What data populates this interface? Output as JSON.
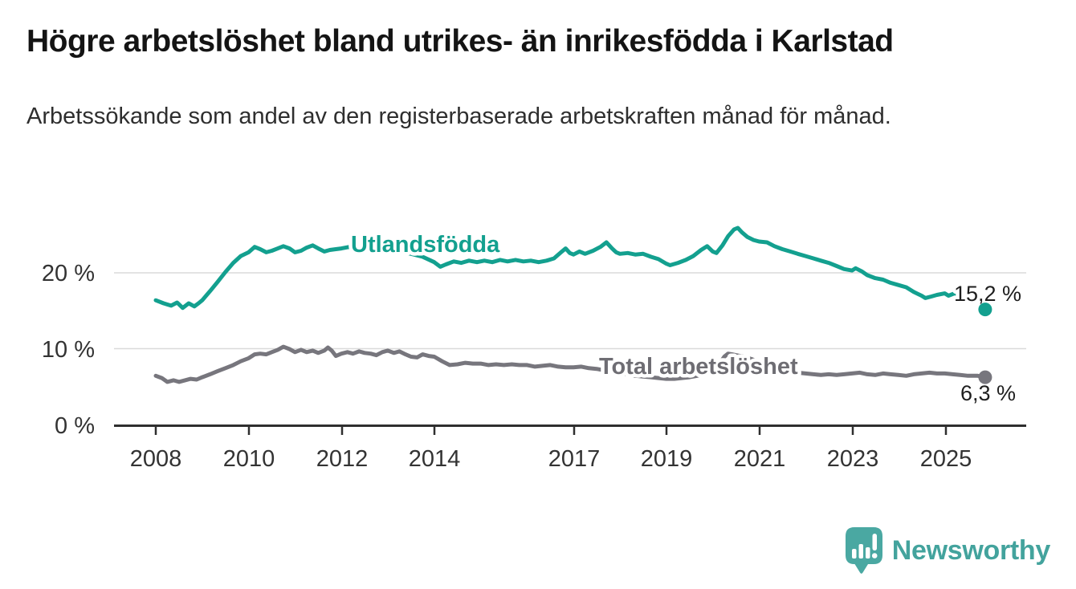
{
  "branding": {
    "name": "Newsworthy",
    "logo_color": "#4aa8a2"
  },
  "chart_data": {
    "type": "line",
    "title": "Högre arbetslöshet bland utrikes- än inrikesfödda i Karlstad",
    "subtitle": "Arbetssökande som andel av den registerbaserade arbetskraften månad för månad.",
    "unit": "%",
    "grid": "horizontal",
    "legend_position": "inline-labels",
    "x_range_years": [
      2008,
      2025.87
    ],
    "ylim": [
      0,
      27
    ],
    "x_axis": {
      "tick_years": [
        2008,
        2010,
        2012,
        2014,
        2017,
        2019,
        2021,
        2023,
        2025
      ],
      "labels": [
        "2008",
        "2010",
        "2012",
        "2014",
        "2017",
        "2019",
        "2021",
        "2023",
        "2025"
      ]
    },
    "y_axis": {
      "ticks": [
        {
          "value": 0,
          "label": "0 %"
        },
        {
          "value": 10,
          "label": "10 %"
        },
        {
          "value": 20,
          "label": "20 %"
        }
      ]
    },
    "series": [
      {
        "id": "utlandsfodda",
        "name": "Utlandsfödda",
        "color": "#13a08f",
        "end_value": 15.2,
        "end_label": "15,2 %",
        "points": [
          [
            2008.0,
            16.4
          ],
          [
            2008.17,
            16.0
          ],
          [
            2008.33,
            15.7
          ],
          [
            2008.46,
            16.1
          ],
          [
            2008.58,
            15.4
          ],
          [
            2008.71,
            16.0
          ],
          [
            2008.83,
            15.6
          ],
          [
            2008.92,
            16.0
          ],
          [
            2009.0,
            16.4
          ],
          [
            2009.17,
            17.6
          ],
          [
            2009.33,
            18.8
          ],
          [
            2009.5,
            20.1
          ],
          [
            2009.67,
            21.3
          ],
          [
            2009.83,
            22.2
          ],
          [
            2010.0,
            22.7
          ],
          [
            2010.13,
            23.4
          ],
          [
            2010.25,
            23.1
          ],
          [
            2010.38,
            22.7
          ],
          [
            2010.5,
            22.9
          ],
          [
            2010.63,
            23.2
          ],
          [
            2010.75,
            23.5
          ],
          [
            2010.88,
            23.2
          ],
          [
            2011.0,
            22.7
          ],
          [
            2011.13,
            22.9
          ],
          [
            2011.25,
            23.3
          ],
          [
            2011.38,
            23.6
          ],
          [
            2011.5,
            23.2
          ],
          [
            2011.63,
            22.8
          ],
          [
            2011.75,
            23.0
          ],
          [
            2011.88,
            23.1
          ],
          [
            2012.0,
            23.2
          ],
          [
            2012.17,
            23.4
          ],
          [
            2012.33,
            23.1
          ],
          [
            2012.5,
            23.3
          ],
          [
            2012.67,
            23.1
          ],
          [
            2012.83,
            23.2
          ],
          [
            2013.0,
            23.1
          ],
          [
            2013.25,
            22.8
          ],
          [
            2013.5,
            22.5
          ],
          [
            2013.75,
            22.1
          ],
          [
            2014.0,
            21.4
          ],
          [
            2014.13,
            20.8
          ],
          [
            2014.25,
            21.1
          ],
          [
            2014.42,
            21.5
          ],
          [
            2014.58,
            21.3
          ],
          [
            2014.75,
            21.6
          ],
          [
            2014.92,
            21.4
          ],
          [
            2015.08,
            21.6
          ],
          [
            2015.25,
            21.4
          ],
          [
            2015.42,
            21.7
          ],
          [
            2015.58,
            21.5
          ],
          [
            2015.75,
            21.7
          ],
          [
            2015.92,
            21.5
          ],
          [
            2016.08,
            21.6
          ],
          [
            2016.25,
            21.4
          ],
          [
            2016.42,
            21.6
          ],
          [
            2016.58,
            21.9
          ],
          [
            2016.75,
            22.8
          ],
          [
            2016.83,
            23.2
          ],
          [
            2016.92,
            22.6
          ],
          [
            2017.0,
            22.4
          ],
          [
            2017.13,
            22.8
          ],
          [
            2017.25,
            22.5
          ],
          [
            2017.42,
            22.9
          ],
          [
            2017.58,
            23.4
          ],
          [
            2017.71,
            24.0
          ],
          [
            2017.83,
            23.2
          ],
          [
            2017.92,
            22.7
          ],
          [
            2018.0,
            22.5
          ],
          [
            2018.17,
            22.6
          ],
          [
            2018.33,
            22.4
          ],
          [
            2018.5,
            22.5
          ],
          [
            2018.67,
            22.1
          ],
          [
            2018.83,
            21.8
          ],
          [
            2019.0,
            21.2
          ],
          [
            2019.08,
            21.0
          ],
          [
            2019.25,
            21.3
          ],
          [
            2019.42,
            21.7
          ],
          [
            2019.58,
            22.2
          ],
          [
            2019.75,
            23.0
          ],
          [
            2019.88,
            23.5
          ],
          [
            2020.0,
            22.8
          ],
          [
            2020.08,
            22.6
          ],
          [
            2020.21,
            23.6
          ],
          [
            2020.33,
            24.8
          ],
          [
            2020.46,
            25.7
          ],
          [
            2020.54,
            25.9
          ],
          [
            2020.63,
            25.3
          ],
          [
            2020.75,
            24.7
          ],
          [
            2020.88,
            24.3
          ],
          [
            2021.0,
            24.1
          ],
          [
            2021.17,
            24.0
          ],
          [
            2021.33,
            23.5
          ],
          [
            2021.5,
            23.1
          ],
          [
            2021.67,
            22.8
          ],
          [
            2021.83,
            22.5
          ],
          [
            2022.0,
            22.2
          ],
          [
            2022.17,
            21.9
          ],
          [
            2022.33,
            21.6
          ],
          [
            2022.5,
            21.3
          ],
          [
            2022.67,
            20.9
          ],
          [
            2022.83,
            20.5
          ],
          [
            2023.0,
            20.3
          ],
          [
            2023.08,
            20.6
          ],
          [
            2023.21,
            20.2
          ],
          [
            2023.33,
            19.7
          ],
          [
            2023.5,
            19.3
          ],
          [
            2023.67,
            19.1
          ],
          [
            2023.83,
            18.7
          ],
          [
            2024.0,
            18.4
          ],
          [
            2024.17,
            18.1
          ],
          [
            2024.33,
            17.5
          ],
          [
            2024.5,
            17.0
          ],
          [
            2024.58,
            16.7
          ],
          [
            2024.71,
            16.9
          ],
          [
            2024.83,
            17.1
          ],
          [
            2025.0,
            17.3
          ],
          [
            2025.08,
            17.0
          ],
          [
            2025.21,
            17.3
          ],
          [
            2025.33,
            17.1
          ],
          [
            2025.46,
            17.2
          ],
          [
            2025.58,
            16.9
          ],
          [
            2025.71,
            16.4
          ],
          [
            2025.87,
            15.2
          ]
        ]
      },
      {
        "id": "total-arbetsloshet",
        "name": "Total arbetslöshet",
        "color": "#77767d",
        "label_color": "#6e6d73",
        "end_value": 6.3,
        "end_label": "6,3 %",
        "points": [
          [
            2008.0,
            6.5
          ],
          [
            2008.13,
            6.2
          ],
          [
            2008.25,
            5.7
          ],
          [
            2008.38,
            5.9
          ],
          [
            2008.5,
            5.7
          ],
          [
            2008.63,
            5.9
          ],
          [
            2008.75,
            6.1
          ],
          [
            2008.88,
            6.0
          ],
          [
            2009.0,
            6.3
          ],
          [
            2009.17,
            6.7
          ],
          [
            2009.33,
            7.1
          ],
          [
            2009.5,
            7.5
          ],
          [
            2009.67,
            7.9
          ],
          [
            2009.83,
            8.4
          ],
          [
            2010.0,
            8.8
          ],
          [
            2010.13,
            9.3
          ],
          [
            2010.25,
            9.4
          ],
          [
            2010.38,
            9.3
          ],
          [
            2010.5,
            9.6
          ],
          [
            2010.63,
            9.9
          ],
          [
            2010.75,
            10.3
          ],
          [
            2010.88,
            10.0
          ],
          [
            2011.0,
            9.6
          ],
          [
            2011.13,
            9.9
          ],
          [
            2011.25,
            9.6
          ],
          [
            2011.38,
            9.8
          ],
          [
            2011.5,
            9.5
          ],
          [
            2011.63,
            9.8
          ],
          [
            2011.71,
            10.2
          ],
          [
            2011.79,
            9.8
          ],
          [
            2011.88,
            9.1
          ],
          [
            2012.0,
            9.4
          ],
          [
            2012.13,
            9.6
          ],
          [
            2012.25,
            9.4
          ],
          [
            2012.38,
            9.7
          ],
          [
            2012.5,
            9.5
          ],
          [
            2012.63,
            9.4
          ],
          [
            2012.75,
            9.2
          ],
          [
            2012.88,
            9.6
          ],
          [
            2013.0,
            9.8
          ],
          [
            2013.13,
            9.5
          ],
          [
            2013.25,
            9.7
          ],
          [
            2013.38,
            9.3
          ],
          [
            2013.5,
            9.0
          ],
          [
            2013.63,
            8.9
          ],
          [
            2013.75,
            9.3
          ],
          [
            2013.88,
            9.1
          ],
          [
            2014.0,
            9.0
          ],
          [
            2014.17,
            8.4
          ],
          [
            2014.33,
            7.9
          ],
          [
            2014.5,
            8.0
          ],
          [
            2014.67,
            8.2
          ],
          [
            2014.83,
            8.1
          ],
          [
            2015.0,
            8.1
          ],
          [
            2015.17,
            7.9
          ],
          [
            2015.33,
            8.0
          ],
          [
            2015.5,
            7.9
          ],
          [
            2015.67,
            8.0
          ],
          [
            2015.83,
            7.9
          ],
          [
            2016.0,
            7.9
          ],
          [
            2016.17,
            7.7
          ],
          [
            2016.33,
            7.8
          ],
          [
            2016.5,
            7.9
          ],
          [
            2016.67,
            7.7
          ],
          [
            2016.83,
            7.6
          ],
          [
            2017.0,
            7.6
          ],
          [
            2017.17,
            7.7
          ],
          [
            2017.33,
            7.5
          ],
          [
            2017.5,
            7.4
          ],
          [
            2017.67,
            7.2
          ],
          [
            2017.83,
            7.0
          ],
          [
            2018.0,
            6.9
          ],
          [
            2018.17,
            6.7
          ],
          [
            2018.33,
            6.5
          ],
          [
            2018.5,
            6.4
          ],
          [
            2018.67,
            6.3
          ],
          [
            2018.83,
            6.2
          ],
          [
            2019.0,
            6.1
          ],
          [
            2019.17,
            6.1
          ],
          [
            2019.33,
            6.2
          ],
          [
            2019.5,
            6.3
          ],
          [
            2019.67,
            6.5
          ],
          [
            2019.83,
            6.8
          ],
          [
            2020.0,
            7.2
          ],
          [
            2020.17,
            8.3
          ],
          [
            2020.25,
            9.0
          ],
          [
            2020.33,
            9.4
          ],
          [
            2020.42,
            9.3
          ],
          [
            2020.5,
            9.2
          ],
          [
            2020.67,
            9.0
          ],
          [
            2020.83,
            8.7
          ],
          [
            2021.0,
            8.3
          ],
          [
            2021.17,
            7.9
          ],
          [
            2021.33,
            7.5
          ],
          [
            2021.5,
            7.2
          ],
          [
            2021.67,
            7.0
          ],
          [
            2021.83,
            6.9
          ],
          [
            2022.0,
            6.8
          ],
          [
            2022.17,
            6.7
          ],
          [
            2022.33,
            6.6
          ],
          [
            2022.5,
            6.7
          ],
          [
            2022.67,
            6.6
          ],
          [
            2022.83,
            6.7
          ],
          [
            2023.0,
            6.8
          ],
          [
            2023.17,
            6.9
          ],
          [
            2023.33,
            6.7
          ],
          [
            2023.5,
            6.6
          ],
          [
            2023.67,
            6.8
          ],
          [
            2023.83,
            6.7
          ],
          [
            2024.0,
            6.6
          ],
          [
            2024.17,
            6.5
          ],
          [
            2024.33,
            6.7
          ],
          [
            2024.5,
            6.8
          ],
          [
            2024.67,
            6.9
          ],
          [
            2024.83,
            6.8
          ],
          [
            2025.0,
            6.8
          ],
          [
            2025.17,
            6.7
          ],
          [
            2025.33,
            6.6
          ],
          [
            2025.5,
            6.5
          ],
          [
            2025.71,
            6.5
          ],
          [
            2025.87,
            6.3
          ]
        ]
      }
    ]
  }
}
